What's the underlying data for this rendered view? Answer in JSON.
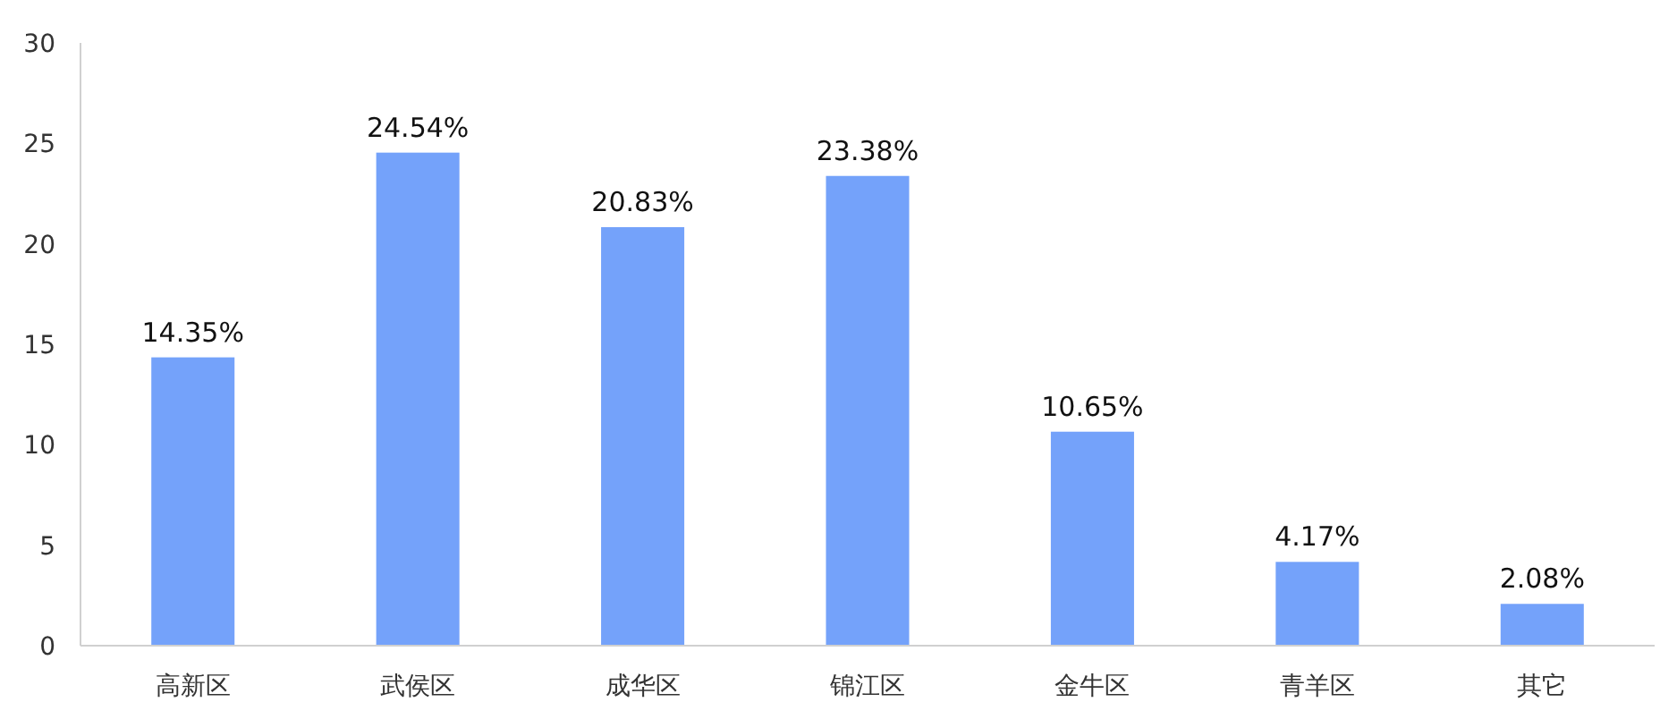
{
  "chart_data": {
    "type": "bar",
    "categories": [
      "高新区",
      "武侯区",
      "成华区",
      "锦江区",
      "金牛区",
      "青羊区",
      "其它"
    ],
    "values": [
      14.35,
      24.54,
      20.83,
      23.38,
      10.65,
      4.17,
      2.08
    ],
    "value_labels": [
      "14.35%",
      "24.54%",
      "20.83%",
      "23.38%",
      "10.65%",
      "4.17%",
      "2.08%"
    ],
    "color": "#74a2fa",
    "ylim": [
      0,
      30
    ],
    "yticks": [
      0,
      5,
      10,
      15,
      20,
      25,
      30
    ],
    "grid": false
  }
}
